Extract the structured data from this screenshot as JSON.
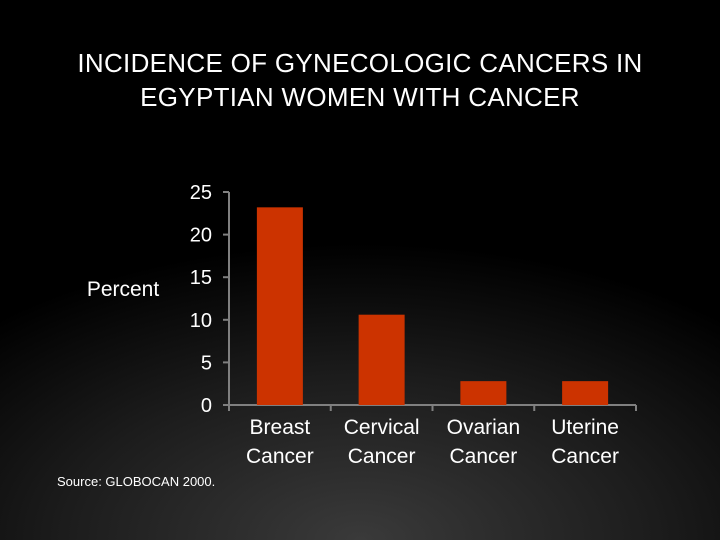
{
  "title_lines": [
    "INCIDENCE OF GYNECOLOGIC CANCERS IN",
    "EGYPTIAN WOMEN WITH CANCER"
  ],
  "source": "Source:  GLOBOCAN 2000.",
  "colors": {
    "bar": "#cc3300",
    "axis": "#808080",
    "text": "#ffffff"
  },
  "chart_data": {
    "type": "bar",
    "categories": [
      [
        "Breast",
        "Cancer"
      ],
      [
        "Cervical",
        "Cancer"
      ],
      [
        "Ovarian",
        "Cancer"
      ],
      [
        "Uterine",
        "Cancer"
      ]
    ],
    "values": [
      23.2,
      10.6,
      2.8,
      2.8
    ],
    "ylabel": "Percent",
    "ylim": [
      0,
      25
    ],
    "yticks": [
      0,
      5,
      10,
      15,
      20,
      25
    ],
    "grid": false,
    "legend": "none"
  }
}
